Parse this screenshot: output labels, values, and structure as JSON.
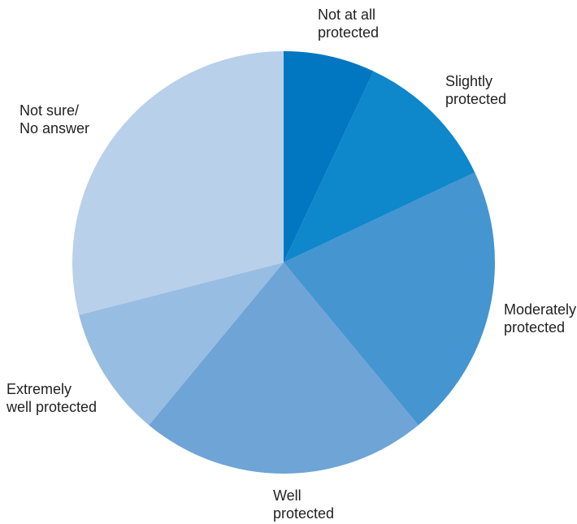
{
  "chart_data": {
    "type": "pie",
    "title": "",
    "categories": [
      "Not at all protected",
      "Slightly protected",
      "Moderately protected",
      "Well protected",
      "Extremely well protected",
      "Not sure/ No answer"
    ],
    "values": [
      7,
      11,
      21,
      22,
      10,
      29
    ],
    "unit": "%",
    "colors": [
      "#0077c0",
      "#0e87cb",
      "#4595d0",
      "#6ea4d6",
      "#98bde2",
      "#b8d0ea"
    ],
    "slices": [
      {
        "name": "Not at all protected",
        "label_lines": [
          "Not at all",
          "protected"
        ]
      },
      {
        "name": "Slightly protected",
        "label_lines": [
          "Slightly",
          "protected"
        ]
      },
      {
        "name": "Moderately protected",
        "label_lines": [
          "Moderately",
          "protected"
        ]
      },
      {
        "name": "Well protected",
        "label_lines": [
          "Well",
          "protected"
        ]
      },
      {
        "name": "Extremely well protected",
        "label_lines": [
          "Extremely",
          "well protected"
        ]
      },
      {
        "name": "Not sure/ No answer",
        "label_lines": [
          "Not sure/",
          "No answer"
        ]
      }
    ],
    "start_angle_deg": 0,
    "direction": "clockwise",
    "legend": "none"
  }
}
